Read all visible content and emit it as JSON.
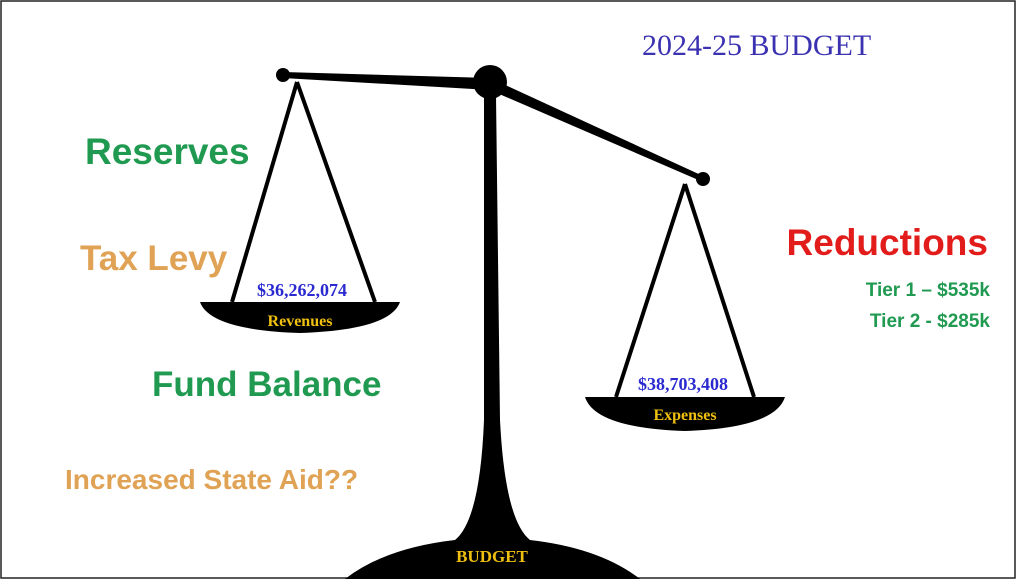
{
  "title": "2024-25 BUDGET",
  "left_labels": [
    "Reserves",
    "Tax Levy",
    "Fund Balance",
    "Increased State Aid??"
  ],
  "right_labels": {
    "heading": "Reductions",
    "items": [
      "Tier 1 – $535k",
      "Tier 2 - $285k"
    ]
  },
  "left_pan": {
    "amount": "$36,262,074",
    "label": "Revenues"
  },
  "right_pan": {
    "amount": "$38,703,408",
    "label": "Expenses"
  },
  "base_label": "BUDGET"
}
